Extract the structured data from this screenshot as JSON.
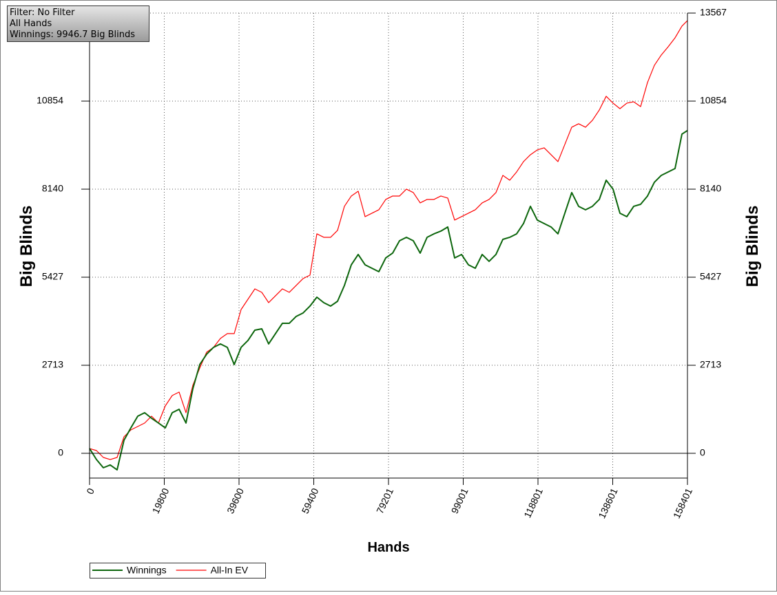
{
  "chart_data": {
    "type": "line",
    "annotations": [
      "Filter: No Filter",
      "All Hands",
      "Winnings: 9946.7 Big Blinds"
    ],
    "x_label": "Hands",
    "y_label": "Big Blinds",
    "xlim": [
      0,
      158401
    ],
    "xticks": [
      0,
      19800,
      39600,
      59400,
      79201,
      99001,
      118801,
      138601,
      158401
    ],
    "ylim": [
      -763,
      13567
    ],
    "yticks": [
      0,
      2713,
      5427,
      8140,
      10854,
      13567
    ],
    "grid": true,
    "legend": "bottom",
    "x": [
      0,
      1825,
      3650,
      5475,
      7300,
      9125,
      10949,
      12774,
      14599,
      16424,
      18249,
      20074,
      21899,
      23724,
      25549,
      27374,
      29198,
      31023,
      32848,
      34673,
      36498,
      38323,
      40148,
      41973,
      43798,
      45623,
      47447,
      49272,
      51097,
      52922,
      54747,
      56572,
      58397,
      60222,
      62047,
      63872,
      65696,
      67521,
      69346,
      71171,
      72996,
      74821,
      76646,
      78471,
      80296,
      82121,
      83945,
      85770,
      87595,
      89420,
      91245,
      93070,
      94895,
      96720,
      98545,
      100370,
      102194,
      104019,
      105844,
      107669,
      109494,
      111319,
      113144,
      114969,
      116794,
      118619,
      120443,
      122268,
      124093,
      125918,
      127743,
      129568,
      131393,
      133218,
      135043,
      136868,
      138692,
      140517,
      142342,
      144167,
      145992,
      147817,
      149642,
      151467,
      153292,
      155117,
      156941,
      158401
    ],
    "series": [
      {
        "name": "Winnings",
        "color": "#0b650b",
        "values": [
          148,
          -191,
          -445,
          -360,
          -509,
          403,
          784,
          1145,
          1251,
          1081,
          933,
          784,
          1251,
          1357,
          933,
          1993,
          2735,
          3053,
          3265,
          3371,
          3265,
          2735,
          3265,
          3477,
          3795,
          3837,
          3371,
          3689,
          4007,
          4007,
          4219,
          4325,
          4537,
          4812,
          4643,
          4537,
          4685,
          5173,
          5809,
          6127,
          5809,
          5703,
          5597,
          6021,
          6169,
          6551,
          6657,
          6551,
          6169,
          6657,
          6763,
          6848,
          6975,
          6021,
          6127,
          5809,
          5703,
          6127,
          5915,
          6127,
          6593,
          6657,
          6763,
          7081,
          7611,
          7187,
          7081,
          6975,
          6763,
          7399,
          8035,
          7611,
          7505,
          7611,
          7823,
          8416,
          8141,
          7399,
          7293,
          7611,
          7674,
          7929,
          8353,
          8565,
          8671,
          8777,
          9837,
          9947
        ]
      },
      {
        "name": "All-In EV",
        "color": "#ff0000",
        "values": [
          148,
          85,
          -127,
          -191,
          -127,
          509,
          721,
          827,
          933,
          1145,
          933,
          1463,
          1781,
          1887,
          1251,
          2099,
          2629,
          3116,
          3265,
          3540,
          3689,
          3689,
          4431,
          4749,
          5067,
          4961,
          4643,
          4855,
          5067,
          4961,
          5173,
          5385,
          5491,
          6763,
          6657,
          6657,
          6869,
          7611,
          7929,
          8077,
          7293,
          7399,
          7505,
          7823,
          7929,
          7929,
          8141,
          8035,
          7717,
          7823,
          7823,
          7929,
          7865,
          7187,
          7293,
          7399,
          7505,
          7717,
          7823,
          8035,
          8565,
          8416,
          8671,
          8989,
          9201,
          9349,
          9413,
          9201,
          8989,
          9519,
          10049,
          10155,
          10049,
          10261,
          10579,
          11003,
          10791,
          10621,
          10791,
          10833,
          10685,
          11427,
          11957,
          12275,
          12529,
          12805,
          13165,
          13335
        ]
      }
    ]
  }
}
